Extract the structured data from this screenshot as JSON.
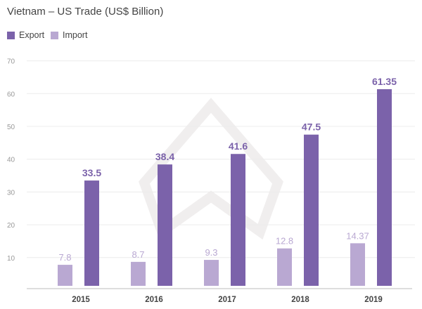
{
  "chart_data": {
    "type": "bar",
    "title": "Vietnam – US Trade (US$ Billion)",
    "xlabel": "",
    "ylabel": "",
    "categories": [
      "2015",
      "2016",
      "2017",
      "2018",
      "2019"
    ],
    "series": [
      {
        "name": "Import",
        "values": [
          7.8,
          8.7,
          9.3,
          12.8,
          14.37
        ],
        "labels": [
          "7.8",
          "8.7",
          "9.3",
          "12.8",
          "14.37"
        ],
        "color": "#b9a8d2"
      },
      {
        "name": "Export",
        "values": [
          33.5,
          38.4,
          41.6,
          47.5,
          61.35
        ],
        "labels": [
          "33.5",
          "38.4",
          "41.6",
          "47.5",
          "61.35"
        ],
        "color": "#7b62aa"
      }
    ],
    "ylim": [
      0,
      70
    ],
    "yticks": [
      "10",
      "20",
      "30",
      "40",
      "50",
      "60",
      "70"
    ],
    "grid": true,
    "legend": "top-left",
    "legend_order": [
      "Export",
      "Import"
    ]
  }
}
